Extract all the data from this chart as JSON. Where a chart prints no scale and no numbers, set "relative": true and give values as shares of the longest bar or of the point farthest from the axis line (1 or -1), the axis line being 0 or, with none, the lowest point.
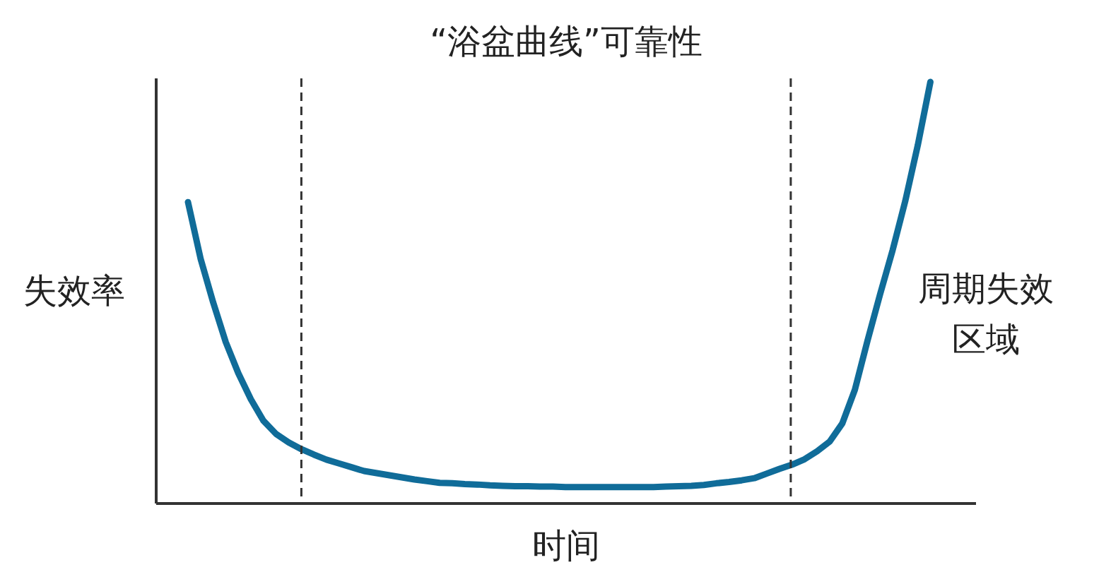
{
  "chart_data": {
    "type": "line",
    "title": "“浴盆曲线”可靠性",
    "xlabel": "时间",
    "ylabel": "失效率",
    "relative": true,
    "categories": [
      null,
      null,
      null,
      null,
      null,
      null,
      null,
      null,
      null,
      null,
      null,
      null,
      null,
      null,
      null,
      null,
      null,
      null,
      null,
      null,
      null,
      null,
      null,
      null,
      null,
      null,
      null,
      null,
      null,
      null,
      null,
      null,
      null,
      null,
      null,
      null,
      null,
      null,
      null,
      null,
      null,
      null,
      null,
      null,
      null,
      null,
      null,
      null,
      null,
      null,
      null,
      null,
      null,
      null,
      null,
      null,
      null,
      null,
      null,
      null
    ],
    "series": [
      {
        "color": "#106c99",
        "values": [
          0.715,
          0.581,
          0.477,
          0.383,
          0.309,
          0.247,
          0.196,
          0.165,
          0.145,
          0.129,
          0.116,
          0.104,
          0.095,
          0.086,
          0.077,
          0.072,
          0.067,
          0.062,
          0.057,
          0.053,
          0.049,
          0.048,
          0.046,
          0.045,
          0.043,
          0.042,
          0.041,
          0.041,
          0.04,
          0.04,
          0.039,
          0.039,
          0.039,
          0.039,
          0.039,
          0.039,
          0.039,
          0.039,
          0.04,
          0.041,
          0.042,
          0.044,
          0.048,
          0.051,
          0.055,
          0.06,
          0.071,
          0.082,
          0.092,
          0.105,
          0.124,
          0.147,
          0.19,
          0.27,
          0.386,
          0.496,
          0.601,
          0.717,
          0.85,
          1.0
        ]
      }
    ],
    "annotations": [
      "周期失效区域"
    ]
  }
}
